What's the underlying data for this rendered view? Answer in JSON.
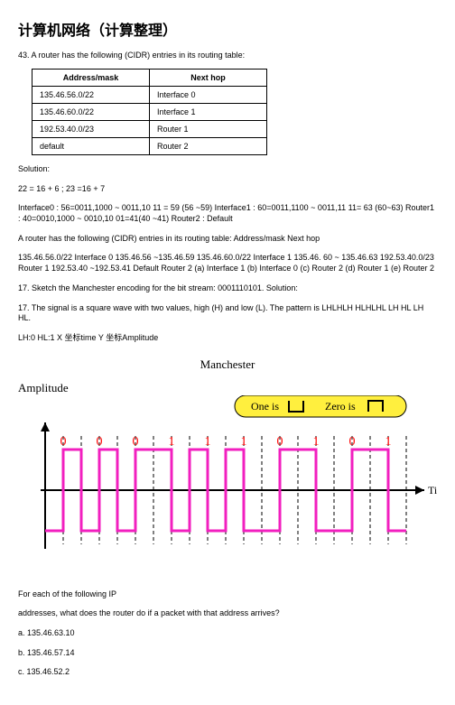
{
  "title": "计算机网络（计算整理）",
  "q43": "43. A router has the following (CIDR) entries in its routing table:",
  "table": {
    "h1": "Address/mask",
    "h2": "Next hop",
    "rows": [
      [
        "135.46.56.0/22",
        "Interface 0"
      ],
      [
        "135.46.60.0/22",
        "Interface 1"
      ],
      [
        "192.53.40.0/23",
        "Router 1"
      ],
      [
        "default",
        "Router 2"
      ]
    ]
  },
  "sol_label": "Solution:",
  "calc1": "22 = 16 + 6 ; 23 =16 + 7",
  "calc2": "Interface0 : 56=0011,1000 ~ 0011,10 11 = 59 (56 ~59) Interface1 : 60=0011,1100 ~ 0011,11 11= 63 (60~63) Router1 : 40=0010,1000 ~ 0010,10 01=41(40 ~41) Router2 : Default",
  "calc3": "A router has the following (CIDR) entries in its routing table: Address/mask Next hop",
  "calc4": "135.46.56.0/22 Interface 0 135.46.56 ~135.46.59 135.46.60.0/22 Interface 1 135.46. 60 ~ 135.46.63 192.53.40.0/23 Router 1 192.53.40 ~192.53.41 Default Router 2 (a) Interface 1 (b) Interface 0 (c) Router 2 (d) Router 1 (e) Router 2",
  "q17a": "17. Sketch the Manchester encoding for the bit stream: 0001110101. Solution:",
  "q17b": "17. The signal is a square wave with two values, high (H) and low (L). The pattern is LHLHLH HLHLHL LH HL LH HL.",
  "q17c": "LH:0 HL:1 X 坐标time Y 坐标Amplitude",
  "chart": {
    "title": "Manchester",
    "ylabel": "Amplitude",
    "xlabel": "Time",
    "legend_one": "One is",
    "legend_zero": "Zero is",
    "bits": [
      "0",
      "0",
      "0",
      "1",
      "1",
      "1",
      "0",
      "1",
      "0",
      "1"
    ],
    "colors": {
      "signal": "#f21fbf",
      "axis": "#000000",
      "grid": "#000000",
      "legend_bg": "#ffef3e",
      "bit_text": "#ff0000",
      "label_text": "#000000"
    },
    "stroke_width": 3,
    "dash": "4,3"
  },
  "foreach": "For each of the following IP",
  "addr_q": "addresses, what does the router do if a packet with that address arrives?",
  "opts": {
    "a": "a. 135.46.63.10",
    "b": "b. 135.46.57.14",
    "c": "c. 135.46.52.2"
  }
}
